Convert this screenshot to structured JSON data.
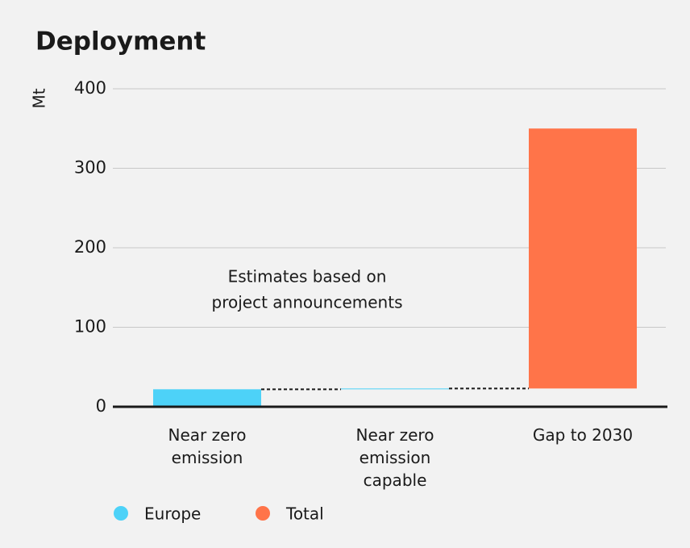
{
  "chart_data": {
    "type": "waterfall",
    "title": "Deployment",
    "y_label": "Mt",
    "categories": [
      "Near zero emission",
      "Near zero emission capable",
      "Gap to 2030"
    ],
    "series": [
      {
        "name": "Europe",
        "color": "#4dd2f8",
        "values": [
          22,
          1,
          null
        ]
      },
      {
        "name": "Total",
        "color": "#ff7449",
        "values": [
          null,
          null,
          327
        ]
      }
    ],
    "annotation": [
      "Estimates based on",
      "project announcements"
    ],
    "ylim": [
      0,
      400
    ],
    "yticks": [
      0,
      100,
      200,
      300,
      400
    ],
    "grid": true
  }
}
